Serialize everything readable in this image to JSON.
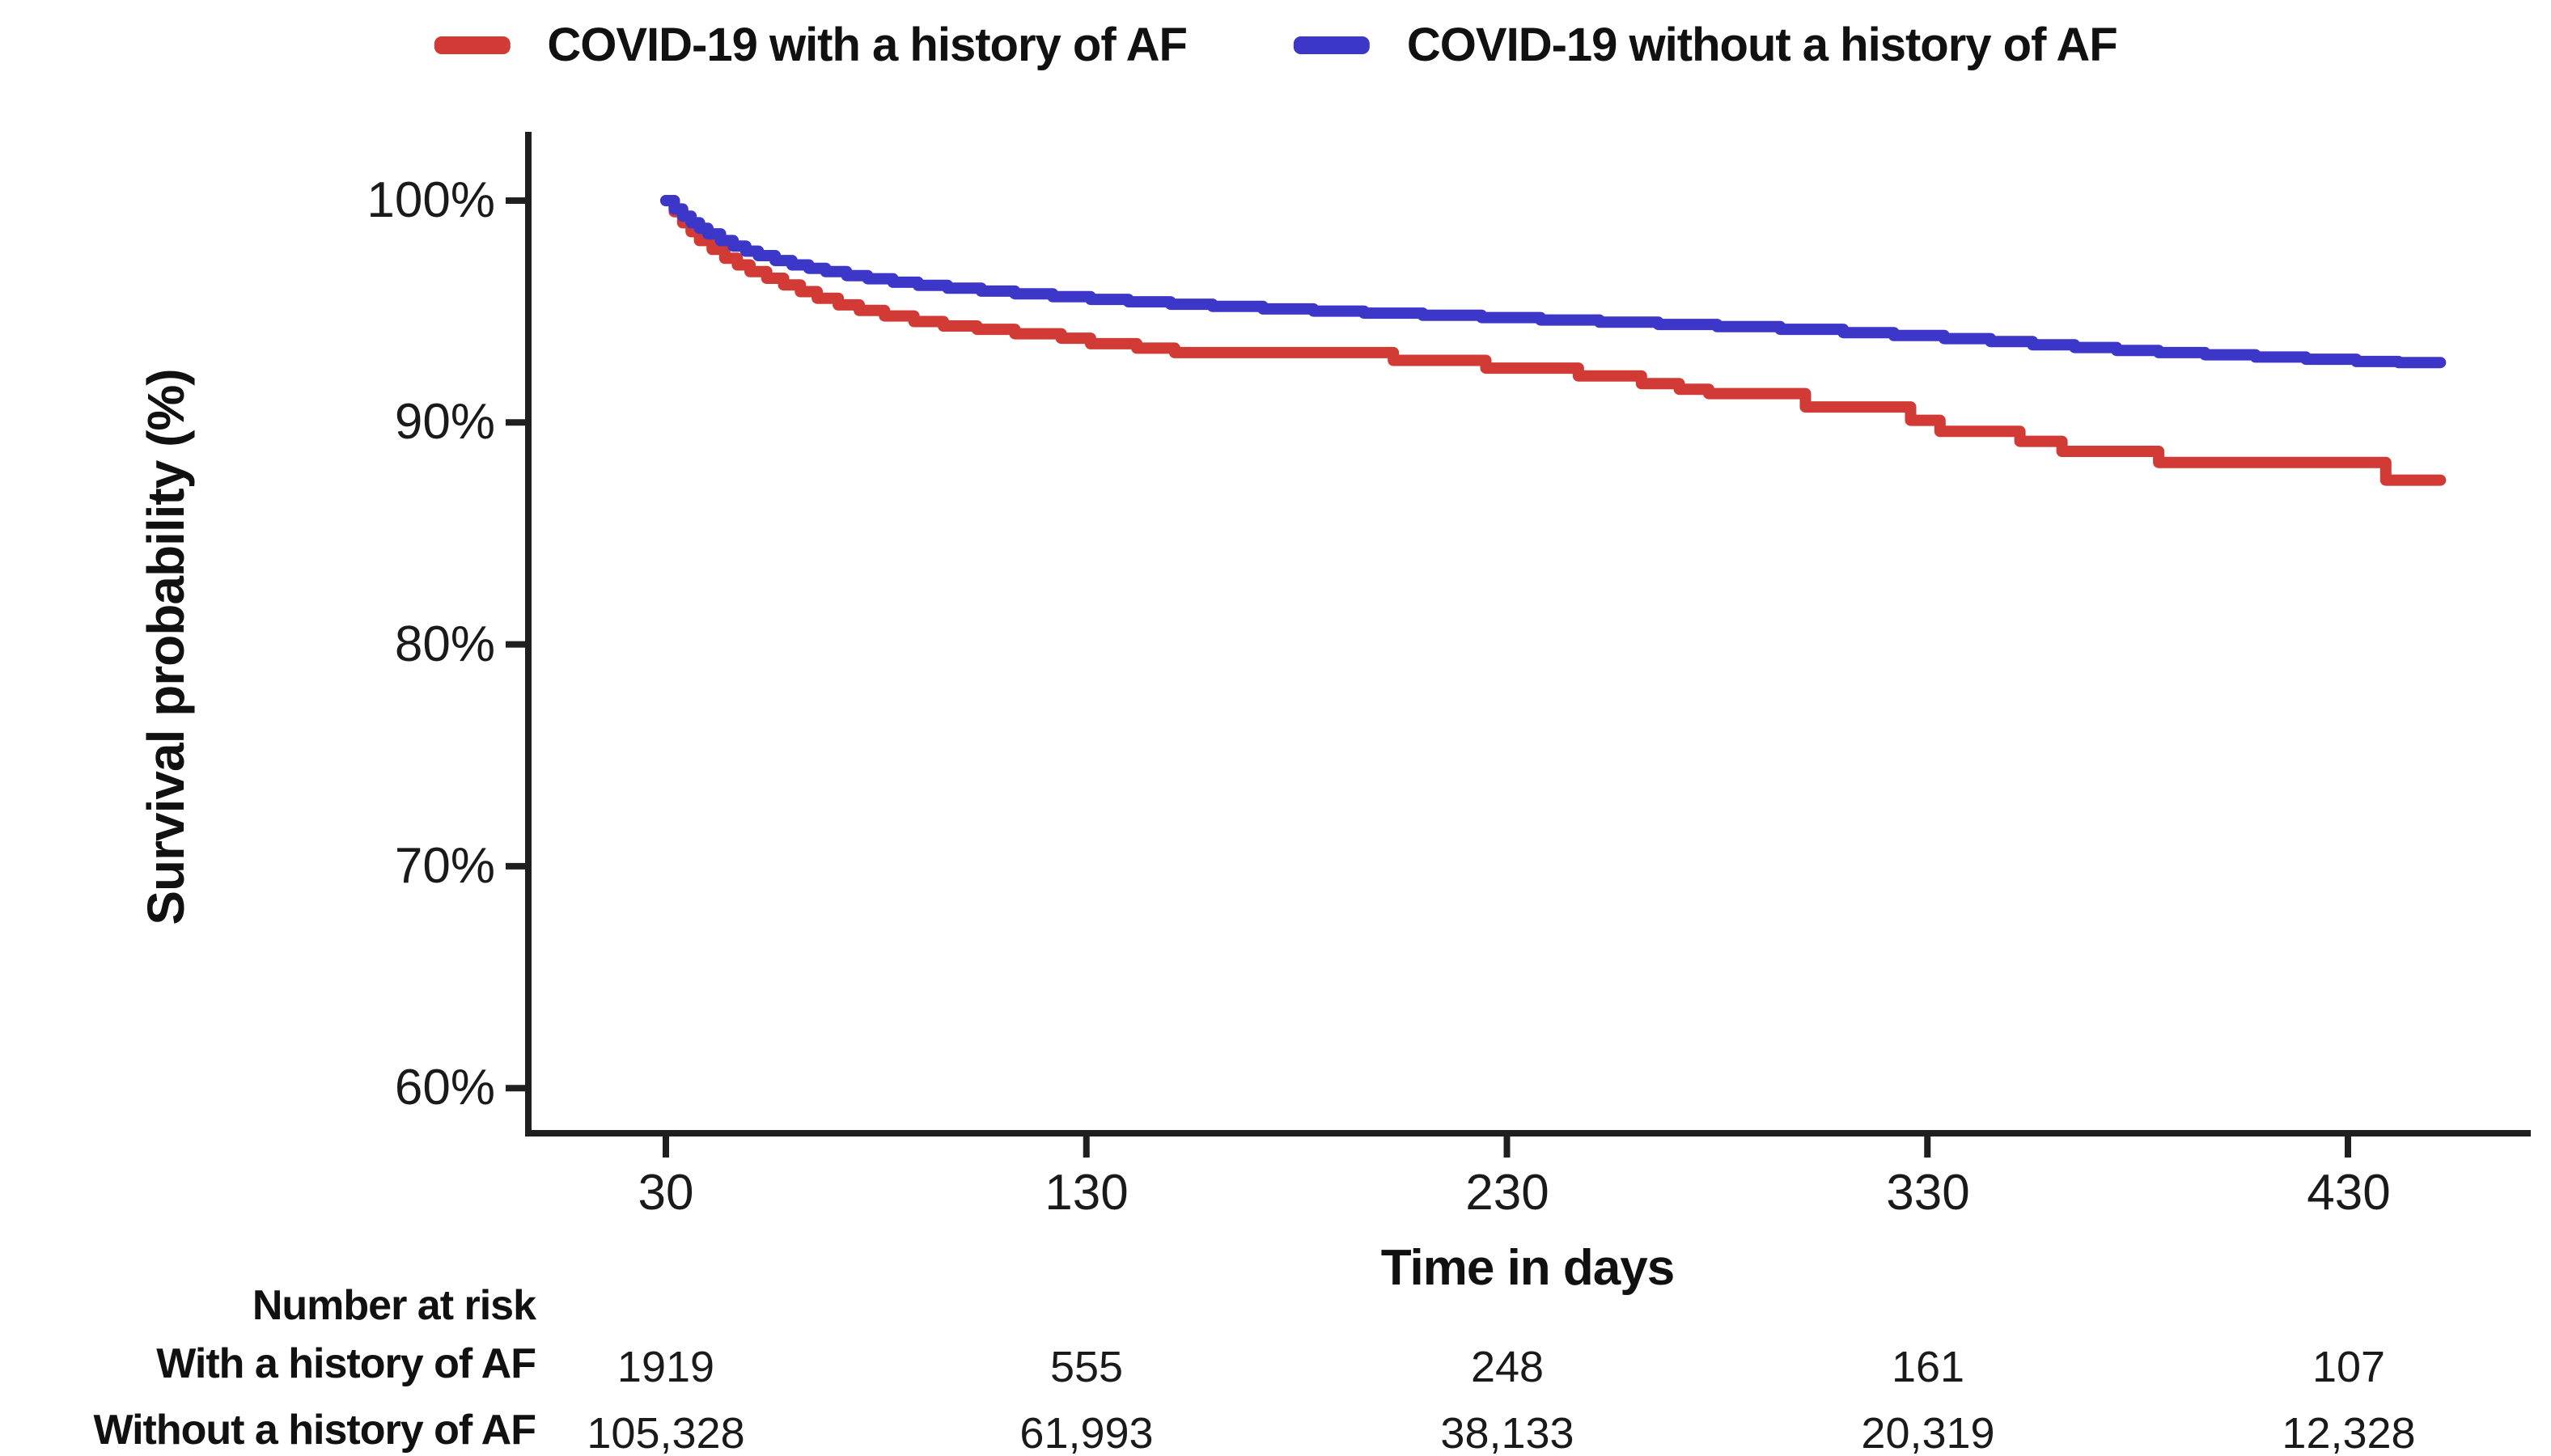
{
  "legend": {
    "items": [
      {
        "label": "COVID-19 with a history of AF",
        "color": "#d23a35"
      },
      {
        "label": "COVID-19 without a history of AF",
        "color": "#3c36c9"
      }
    ]
  },
  "chart_data": {
    "type": "line",
    "curve_type": "step-after",
    "title": "",
    "xlabel": "Time in days",
    "ylabel": "Survival probability (%)",
    "x_ticks": [
      30,
      130,
      230,
      330,
      430
    ],
    "x_tick_labels": [
      "30",
      "130",
      "230",
      "330",
      "430"
    ],
    "y_ticks": [
      100,
      90,
      80,
      70,
      60
    ],
    "y_tick_labels": [
      "100%",
      "90%",
      "80%",
      "70%",
      "60%"
    ],
    "xlim": [
      30,
      452
    ],
    "ylim": [
      58,
      102
    ],
    "grid": false,
    "legend_position": "top",
    "axis_color": "#1f1f1f",
    "series": [
      {
        "name": "COVID-19 with a history of AF",
        "color": "#d23a35",
        "end_x": 452,
        "points": [
          [
            30,
            100
          ],
          [
            32,
            99.5
          ],
          [
            34,
            99.0
          ],
          [
            36,
            98.6
          ],
          [
            38,
            98.2
          ],
          [
            41,
            97.8
          ],
          [
            44,
            97.4
          ],
          [
            47,
            97.1
          ],
          [
            50,
            96.8
          ],
          [
            54,
            96.5
          ],
          [
            58,
            96.2
          ],
          [
            62,
            95.9
          ],
          [
            66,
            95.6
          ],
          [
            71,
            95.3
          ],
          [
            76,
            95.05
          ],
          [
            82,
            94.8
          ],
          [
            89,
            94.55
          ],
          [
            96,
            94.35
          ],
          [
            104,
            94.2
          ],
          [
            113,
            94.0
          ],
          [
            124,
            93.8
          ],
          [
            131,
            93.55
          ],
          [
            142,
            93.35
          ],
          [
            151,
            93.15
          ],
          [
            203,
            92.8
          ],
          [
            225,
            92.45
          ],
          [
            247,
            92.1
          ],
          [
            262,
            91.75
          ],
          [
            271,
            91.5
          ],
          [
            278,
            91.3
          ],
          [
            301,
            90.7
          ],
          [
            326,
            90.1
          ],
          [
            333,
            89.6
          ],
          [
            352,
            89.15
          ],
          [
            362,
            88.7
          ],
          [
            385,
            88.2
          ],
          [
            439,
            87.4
          ]
        ]
      },
      {
        "name": "COVID-19 without a history of AF",
        "color": "#3c36c9",
        "end_x": 452,
        "points": [
          [
            30,
            100
          ],
          [
            32,
            99.62
          ],
          [
            34,
            99.3
          ],
          [
            36,
            99.0
          ],
          [
            38,
            98.75
          ],
          [
            40,
            98.5
          ],
          [
            43,
            98.2
          ],
          [
            46,
            97.95
          ],
          [
            49,
            97.72
          ],
          [
            52,
            97.52
          ],
          [
            56,
            97.3
          ],
          [
            60,
            97.1
          ],
          [
            64,
            96.95
          ],
          [
            68,
            96.8
          ],
          [
            73,
            96.62
          ],
          [
            78,
            96.48
          ],
          [
            84,
            96.32
          ],
          [
            90,
            96.18
          ],
          [
            97,
            96.05
          ],
          [
            105,
            95.92
          ],
          [
            113,
            95.8
          ],
          [
            122,
            95.67
          ],
          [
            131,
            95.55
          ],
          [
            140,
            95.44
          ],
          [
            150,
            95.33
          ],
          [
            160,
            95.23
          ],
          [
            172,
            95.12
          ],
          [
            184,
            95.02
          ],
          [
            196,
            94.93
          ],
          [
            210,
            94.83
          ],
          [
            224,
            94.73
          ],
          [
            238,
            94.62
          ],
          [
            252,
            94.52
          ],
          [
            266,
            94.42
          ],
          [
            280,
            94.32
          ],
          [
            295,
            94.2
          ],
          [
            310,
            94.05
          ],
          [
            322,
            93.92
          ],
          [
            334,
            93.78
          ],
          [
            345,
            93.65
          ],
          [
            355,
            93.5
          ],
          [
            365,
            93.38
          ],
          [
            375,
            93.25
          ],
          [
            385,
            93.15
          ],
          [
            396,
            93.05
          ],
          [
            408,
            92.95
          ],
          [
            420,
            92.85
          ],
          [
            432,
            92.75
          ],
          [
            442,
            92.7
          ]
        ]
      }
    ]
  },
  "risk_table": {
    "header": "Number at risk",
    "rows": [
      {
        "label": "With a history of AF",
        "values": [
          "1919",
          "555",
          "248",
          "161",
          "107"
        ]
      },
      {
        "label": "Without a history of AF",
        "values": [
          "105,328",
          "61,993",
          "38,133",
          "20,319",
          "12,328"
        ]
      }
    ]
  }
}
